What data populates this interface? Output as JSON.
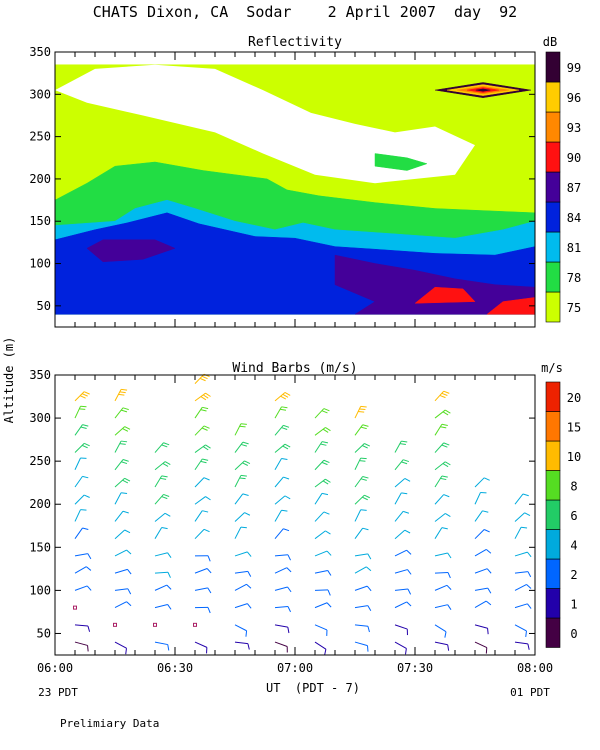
{
  "figure": {
    "title": "CHATS Dixon, CA  Sodar    2 April 2007  day  92",
    "shared_ylabel": "Altitude (m)",
    "xlabel": "UT  (PDT - 7)",
    "left_date_label": "23 PDT",
    "right_date_label": "01 PDT",
    "footer": "Prelimiary Data"
  },
  "chart_data": [
    {
      "type": "heatmap",
      "title": "Reflectivity",
      "colorbar_label": "dB",
      "levels": [
        75,
        78,
        81,
        84,
        87,
        90,
        93,
        96,
        99
      ],
      "level_labels": [
        "75",
        "78",
        "81",
        "84",
        "87",
        "90",
        "93",
        "96",
        "99"
      ],
      "level_colors": [
        "#ccff00",
        "#22dd44",
        "#00bbee",
        "#0022dd",
        "#440099",
        "#ff1111",
        "#ff8800",
        "#ffcc00",
        "#330033"
      ],
      "xlim": [
        "06:00",
        "08:00"
      ],
      "ylim": [
        25,
        350
      ],
      "yticks": [
        50,
        100,
        150,
        200,
        250,
        300,
        350
      ],
      "ytick_labels": [
        "50",
        "100",
        "150",
        "200",
        "250",
        "300",
        "350"
      ],
      "data_range": [
        40,
        335
      ],
      "regions": [
        {
          "level": 75,
          "t": [
            0,
            120
          ],
          "alt": [
            40,
            335
          ],
          "description": "background above ~150 m"
        },
        {
          "level": 78,
          "t": [
            0,
            120
          ],
          "alt": [
            40,
            225
          ],
          "description": "green band 150-225 m"
        },
        {
          "level": 81,
          "t": [
            0,
            120
          ],
          "alt": [
            40,
            180
          ]
        },
        {
          "level": 84,
          "t": [
            0,
            120
          ],
          "alt": [
            40,
            155
          ]
        },
        {
          "level": 87,
          "t": [
            7,
            30
          ],
          "alt": [
            100,
            130
          ]
        },
        {
          "level": 87,
          "t": [
            70,
            120
          ],
          "alt": [
            40,
            110
          ]
        },
        {
          "level": 90,
          "t": [
            90,
            105
          ],
          "alt": [
            45,
            75
          ]
        },
        {
          "level": 90,
          "t": [
            110,
            120
          ],
          "alt": [
            40,
            60
          ]
        },
        {
          "level": 99,
          "t": [
            106,
            108
          ],
          "alt": [
            300,
            310
          ]
        }
      ]
    },
    {
      "type": "scatter",
      "subtype": "wind_barbs",
      "title": "Wind Barbs (m/s)",
      "colorbar_label": "m/s",
      "speed_levels": [
        0,
        1,
        2,
        4,
        6,
        8,
        10,
        15,
        20
      ],
      "speed_labels": [
        "0",
        "1",
        "2",
        "4",
        "6",
        "8",
        "10",
        "15",
        "20"
      ],
      "speed_colors": [
        "#440044",
        "#2200aa",
        "#0066ff",
        "#00aadd",
        "#22cc66",
        "#55dd22",
        "#ffbb00",
        "#ff7700",
        "#ee2200"
      ],
      "xlim": [
        "06:00",
        "08:00"
      ],
      "xticks": [
        "06:00",
        "06:30",
        "07:00",
        "07:30",
        "08:00"
      ],
      "ylim": [
        25,
        350
      ],
      "yticks": [
        50,
        100,
        150,
        200,
        250,
        300,
        350
      ],
      "ytick_labels": [
        "50",
        "100",
        "150",
        "200",
        "250",
        "300",
        "350"
      ],
      "time_minutes": [
        5,
        15,
        25,
        35,
        45,
        55,
        65,
        75,
        85,
        95,
        105,
        115
      ],
      "altitudes": [
        40,
        60,
        80,
        100,
        120,
        140,
        160,
        180,
        200,
        220,
        240,
        260,
        280,
        300,
        320,
        340
      ],
      "top_altitude": [
        320,
        320,
        260,
        345,
        280,
        330,
        300,
        300,
        260,
        320,
        220,
        200
      ],
      "speed_profile": [
        {
          "alt": 40,
          "speed": 1.5
        },
        {
          "alt": 80,
          "speed": 3
        },
        {
          "alt": 140,
          "speed": 4
        },
        {
          "alt": 200,
          "speed": 5.5
        },
        {
          "alt": 260,
          "speed": 7
        },
        {
          "alt": 320,
          "speed": 11
        }
      ],
      "calm_points": [
        {
          "t": 5,
          "alt": 80
        },
        {
          "t": 15,
          "alt": 60
        },
        {
          "t": 25,
          "alt": 60
        },
        {
          "t": 35,
          "alt": 60
        }
      ]
    }
  ]
}
